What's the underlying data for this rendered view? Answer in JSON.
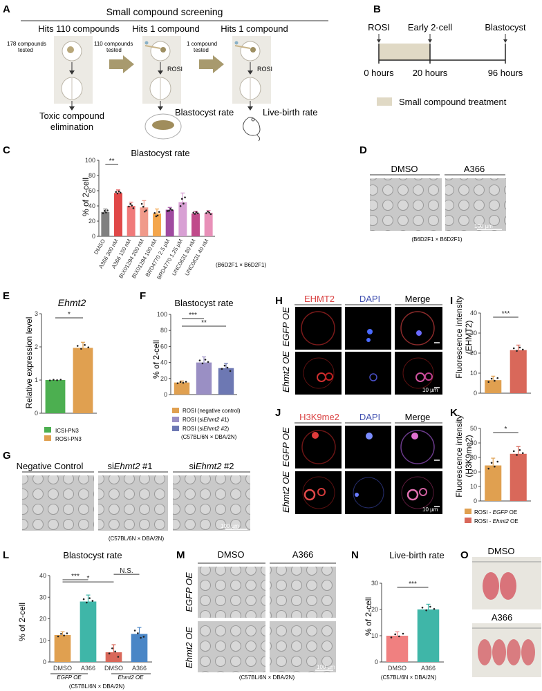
{
  "panels": {
    "a": {
      "label": "A",
      "title": "Small compound screening",
      "hits1": "Hits 110 compounds",
      "hits2": "Hits 1 compound",
      "hits3": "Hits 1 compound",
      "tested1a": "178 compounds",
      "tested1b": "tested",
      "tested2a": "110 compounds",
      "tested2b": "tested",
      "tested3a": "1 compound",
      "tested3b": "tested",
      "rosi": "ROSI",
      "toxic1": "Toxic compound",
      "toxic2": "elimination",
      "blast": "Blastocyst rate",
      "live": "Live-birth rate"
    },
    "b": {
      "label": "B",
      "rosi": "ROSI",
      "early": "Early 2-cell",
      "blast": "Blastocyst",
      "t0": "0 hours",
      "t20": "20 hours",
      "t96": "96 hours",
      "legend": "Small compound treatment"
    },
    "c": {
      "label": "C",
      "cross": "(B6D2F1 × B6D2F1)"
    },
    "d": {
      "label": "D",
      "col1": "DMSO",
      "col2": "A366",
      "scale": "100 µm",
      "cross": "(B6D2F1 × B6D2F1)"
    },
    "e": {
      "label": "E",
      "leg1": "ICSI-PN3",
      "leg2": "ROSI-PN3"
    },
    "f": {
      "label": "F",
      "leg1": "ROSI (negative control)",
      "leg2a": "ROSI (si",
      "leg2b": "Ehmt2",
      "leg2c": " #1)",
      "leg3a": "ROSI (si",
      "leg3b": "Ehmt2",
      "leg3c": " #2)",
      "cross": "(C57BL/6N × DBA/2N)"
    },
    "g": {
      "label": "G",
      "col1": "Negative Control",
      "si": "si",
      "gene": "Ehmt2",
      "n1": " #1",
      "n2": " #2",
      "scale": "100 µm",
      "cross": "(C57BL/6N × DBA/2N)"
    },
    "h": {
      "label": "H",
      "c1": "EHMT2",
      "c2": "DAPI",
      "c3": "Merge",
      "r1": "EGFP OE",
      "r2": "Ehmt2 OE",
      "scale": "10 µm"
    },
    "i": {
      "label": "I",
      "ylabel1": "Fluorescence intensity",
      "ylabel2": "(EHMT2)"
    },
    "j": {
      "label": "J",
      "c1": "H3K9me2",
      "c2": "DAPI",
      "c3": "Merge",
      "r1": "EGFP OE",
      "r2": "Ehmt2 OE",
      "scale": "10 µm"
    },
    "k": {
      "label": "K",
      "ylabel1": "Fluorescence intensity",
      "ylabel2": "(H3K9me2)",
      "leg1a": "ROSI - ",
      "leg1b": "EGFP",
      "leg1c": " OE",
      "leg2a": "ROSI - ",
      "leg2b": "Ehmt2",
      "leg2c": " OE"
    },
    "l": {
      "label": "L",
      "g1": "EGFP OE",
      "g2": "Ehmt2 OE",
      "cross": "(C57BL/6N × DBA/2N)"
    },
    "m": {
      "label": "M",
      "col1": "DMSO",
      "col2": "A366",
      "r1": "EGFP OE",
      "r2": "Ehmt2 OE",
      "scale": "100 µm",
      "cross": "(C57BL/6N × DBA/2N)"
    },
    "n": {
      "label": "N",
      "cross": "(C57BL/6N × DBA/2N)"
    },
    "o": {
      "label": "O",
      "l1": "DMSO",
      "l2": "A366"
    }
  },
  "chart_data": [
    {
      "type": "bar",
      "title": "Blastocyst rate",
      "ylabel": "% of 2-cell",
      "ylim": [
        0,
        100
      ],
      "yticks": [
        0,
        20,
        40,
        60,
        80,
        100
      ],
      "categories": [
        "DMSO",
        "A366 300 nM",
        "A366 150 nM",
        "BIX01294 200 nM",
        "BIX01294 100 nM",
        "BRD4770 2.5 µM",
        "BRD4770 1.25 µM",
        "UNC0631 80 nM",
        "UNC0631 40 nM"
      ],
      "values": [
        32,
        57,
        40,
        38,
        30,
        35,
        45,
        30,
        31
      ],
      "errors": [
        4,
        4,
        5,
        9,
        6,
        3,
        12,
        3,
        3
      ],
      "colors": [
        "#808080",
        "#e04848",
        "#f07a7a",
        "#f09a8a",
        "#f4a64c",
        "#a04aa0",
        "#d8a0d4",
        "#c04a8a",
        "#e890b8"
      ],
      "significance": [
        {
          "from": 0,
          "to": 1,
          "label": "**"
        }
      ]
    },
    {
      "type": "bar",
      "title": "Ehmt2",
      "ylabel": "Relative expression level",
      "ylim": [
        0,
        3
      ],
      "yticks": [
        0,
        1,
        2,
        3
      ],
      "categories": [
        "ICSI-PN3",
        "ROSI-PN3"
      ],
      "values": [
        1.0,
        1.97
      ],
      "errors": [
        0.0,
        0.17
      ],
      "colors": [
        "#4caf50",
        "#e0a050"
      ],
      "significance": [
        {
          "from": 0,
          "to": 1,
          "label": "*"
        }
      ]
    },
    {
      "type": "bar",
      "title": "Blastocyst rate",
      "ylabel": "% of 2-cell",
      "ylim": [
        0,
        100
      ],
      "yticks": [
        0,
        20,
        40,
        60,
        80,
        100
      ],
      "categories": [
        "ROSI (negative control)",
        "ROSI (siEhmt2 #1)",
        "ROSI (siEhmt2 #2)"
      ],
      "values": [
        15,
        40,
        33
      ],
      "errors": [
        2,
        7,
        6
      ],
      "colors": [
        "#e0a050",
        "#9a8fc4",
        "#6d78b3"
      ],
      "significance": [
        {
          "from": 0,
          "to": 1,
          "label": "***"
        },
        {
          "from": 0,
          "to": 2,
          "label": "**"
        }
      ]
    },
    {
      "type": "bar",
      "ylim": [
        0,
        40
      ],
      "yticks": [
        0,
        10,
        20,
        30,
        40
      ],
      "categories": [
        "ROSI - EGFP OE",
        "ROSI - Ehmt2 OE"
      ],
      "values": [
        6.5,
        21.5
      ],
      "errors": [
        2,
        2.5
      ],
      "colors": [
        "#e0a050",
        "#d9685a"
      ],
      "significance": [
        {
          "from": 0,
          "to": 1,
          "label": "***"
        }
      ]
    },
    {
      "type": "bar",
      "ylim": [
        0,
        50
      ],
      "yticks": [
        0,
        10,
        20,
        30,
        40,
        50
      ],
      "categories": [
        "ROSI - EGFP OE",
        "ROSI - Ehmt2 OE"
      ],
      "values": [
        24.5,
        32.5
      ],
      "errors": [
        5,
        5
      ],
      "colors": [
        "#e0a050",
        "#d9685a"
      ],
      "significance": [
        {
          "from": 0,
          "to": 1,
          "label": "*"
        }
      ]
    },
    {
      "type": "bar",
      "title": "Blastocyst rate",
      "ylabel": "% of 2-cell",
      "ylim": [
        0,
        40
      ],
      "yticks": [
        0,
        10,
        20,
        30,
        40
      ],
      "categories": [
        "DMSO",
        "A366",
        "DMSO",
        "A366"
      ],
      "values": [
        12.5,
        28,
        4.5,
        13
      ],
      "errors": [
        1.5,
        3,
        3.5,
        3
      ],
      "colors": [
        "#e0a050",
        "#3fb6a8",
        "#d9685a",
        "#4a86c6"
      ],
      "significance": [
        {
          "from": 0,
          "to": 1,
          "label": "***"
        },
        {
          "from": 0,
          "to": 2,
          "label": "*"
        },
        {
          "from": 2,
          "to": 3,
          "label": "N.S."
        }
      ]
    },
    {
      "type": "bar",
      "title": "Live-birth rate",
      "ylabel": "% of 2-cell",
      "ylim": [
        0,
        30
      ],
      "yticks": [
        0,
        10,
        20,
        30
      ],
      "categories": [
        "DMSO",
        "A366"
      ],
      "values": [
        10,
        20
      ],
      "errors": [
        1.5,
        2
      ],
      "colors": [
        "#f08080",
        "#3fb6a8"
      ],
      "significance": [
        {
          "from": 0,
          "to": 1,
          "label": "***"
        }
      ]
    }
  ]
}
